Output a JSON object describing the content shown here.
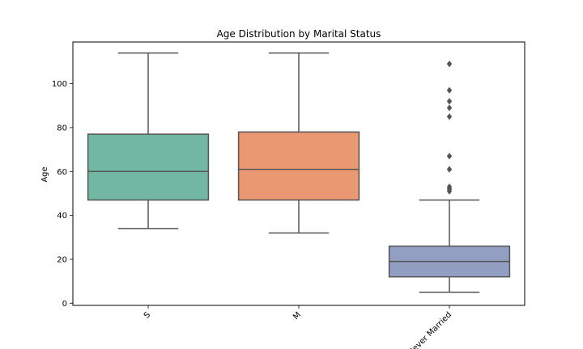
{
  "chart_data": {
    "type": "box",
    "title": "Age Distribution by Marital Status",
    "xlabel": "",
    "ylabel": "Age",
    "ylim": [
      -1,
      119
    ],
    "yticks": [
      0,
      20,
      40,
      60,
      80,
      100
    ],
    "grid": false,
    "categories": [
      "S",
      "M",
      "Never Married"
    ],
    "boxes": [
      {
        "category": "S",
        "whisker_low": 34,
        "q1": 47,
        "median": 60,
        "q3": 77,
        "whisker_high": 114,
        "outliers": [],
        "color": "#72b7a1"
      },
      {
        "category": "M",
        "whisker_low": 32,
        "q1": 47,
        "median": 61,
        "q3": 78,
        "whisker_high": 114,
        "outliers": [],
        "color": "#ea9872"
      },
      {
        "category": "Never Married",
        "whisker_low": 5,
        "q1": 12,
        "median": 19,
        "q3": 26,
        "whisker_high": 47,
        "outliers": [
          51,
          52,
          53,
          61,
          67,
          85,
          89,
          92,
          97,
          109
        ],
        "color": "#929fc2"
      }
    ]
  }
}
